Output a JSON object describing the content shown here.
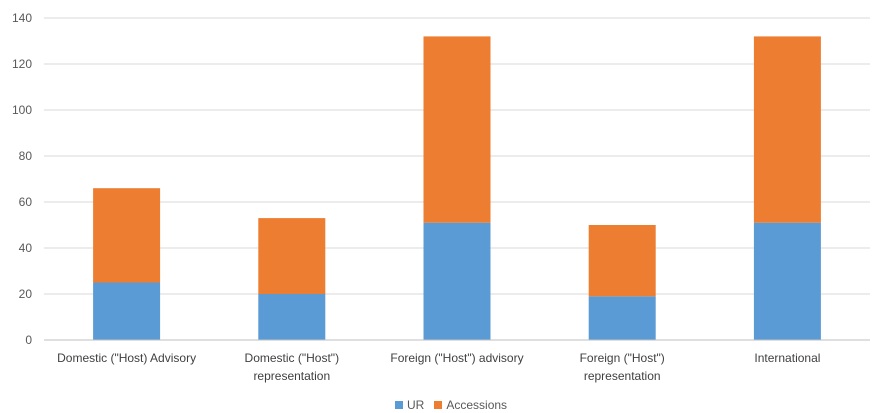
{
  "chart_data": {
    "type": "bar",
    "stacked": true,
    "categories": [
      [
        "Domestic (\"Host) Advisory"
      ],
      [
        "Domestic (\"Host\")",
        "representation"
      ],
      [
        "Foreign (\"Host\") advisory"
      ],
      [
        "Foreign (\"Host\")",
        "representation"
      ],
      [
        "International"
      ]
    ],
    "series": [
      {
        "name": "UR",
        "values": [
          25,
          20,
          51,
          19,
          51
        ],
        "color": "#5b9bd5"
      },
      {
        "name": "Accessions",
        "values": [
          41,
          33,
          81,
          31,
          81
        ],
        "color": "#ed7d31"
      }
    ],
    "title": "",
    "xlabel": "",
    "ylabel": "",
    "ylim": [
      0,
      140
    ],
    "yticks": [
      0,
      20,
      40,
      60,
      80,
      100,
      120,
      140
    ],
    "grid": true,
    "legend": "bottom"
  }
}
